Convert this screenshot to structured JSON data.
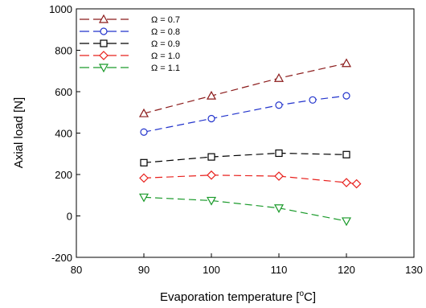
{
  "chart_data": {
    "type": "line",
    "xlabel": "Evaporation temperature [",
    "xlabel_unit": "o",
    "xlabel_suffix": "C]",
    "ylabel": "Axial load [N]",
    "xlim": [
      80,
      130
    ],
    "ylim": [
      -200,
      1000
    ],
    "xticks": [
      80,
      90,
      100,
      110,
      120,
      130
    ],
    "yticks": [
      -200,
      0,
      200,
      400,
      600,
      800,
      1000
    ],
    "grid": false,
    "legend_position": "top-left",
    "series": [
      {
        "name": "Ω = 0.7",
        "color": "#8b1a1a",
        "marker": "triangle-up",
        "x": [
          90,
          100,
          110,
          120
        ],
        "y": [
          495,
          580,
          665,
          737
        ]
      },
      {
        "name": "Ω = 0.8",
        "color": "#2233cc",
        "marker": "circle",
        "x": [
          90,
          100,
          110,
          115,
          120
        ],
        "y": [
          405,
          470,
          535,
          560,
          580
        ]
      },
      {
        "name": "Ω = 0.9",
        "color": "#000000",
        "marker": "square",
        "x": [
          90,
          100,
          110,
          120
        ],
        "y": [
          257,
          285,
          303,
          296
        ]
      },
      {
        "name": "Ω = 1.0",
        "color": "#e8201c",
        "marker": "diamond",
        "x": [
          90,
          100,
          110,
          120,
          121.5
        ],
        "y": [
          183,
          197,
          192,
          161,
          155
        ]
      },
      {
        "name": "Ω = 1.1",
        "color": "#1a9a2a",
        "marker": "triangle-down",
        "x": [
          90,
          100,
          110,
          120
        ],
        "y": [
          90,
          74,
          38,
          -25
        ]
      }
    ]
  }
}
